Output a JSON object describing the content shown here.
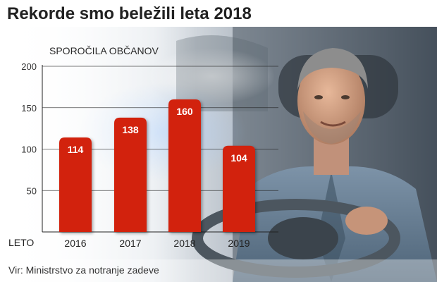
{
  "header": {
    "title": "Rekorde smo beležili leta 2018"
  },
  "footer": {
    "source": "Vir: Ministrstvo za notranje zadeve"
  },
  "colors": {
    "bar": "#d2210f",
    "bar_label": "#ffffff",
    "grid": "#222222",
    "title": "#222222"
  },
  "chart_data": {
    "type": "bar",
    "title": "Rekorde smo beležili leta 2018",
    "ylabel": "SPOROČILA OBČANOV",
    "xlabel": "LETO",
    "categories": [
      "2016",
      "2017",
      "2018",
      "2019"
    ],
    "values": [
      114,
      138,
      160,
      104
    ],
    "ylim": [
      0,
      200
    ],
    "yticks": [
      50,
      100,
      150,
      200
    ],
    "grid": true,
    "legend": "none"
  }
}
